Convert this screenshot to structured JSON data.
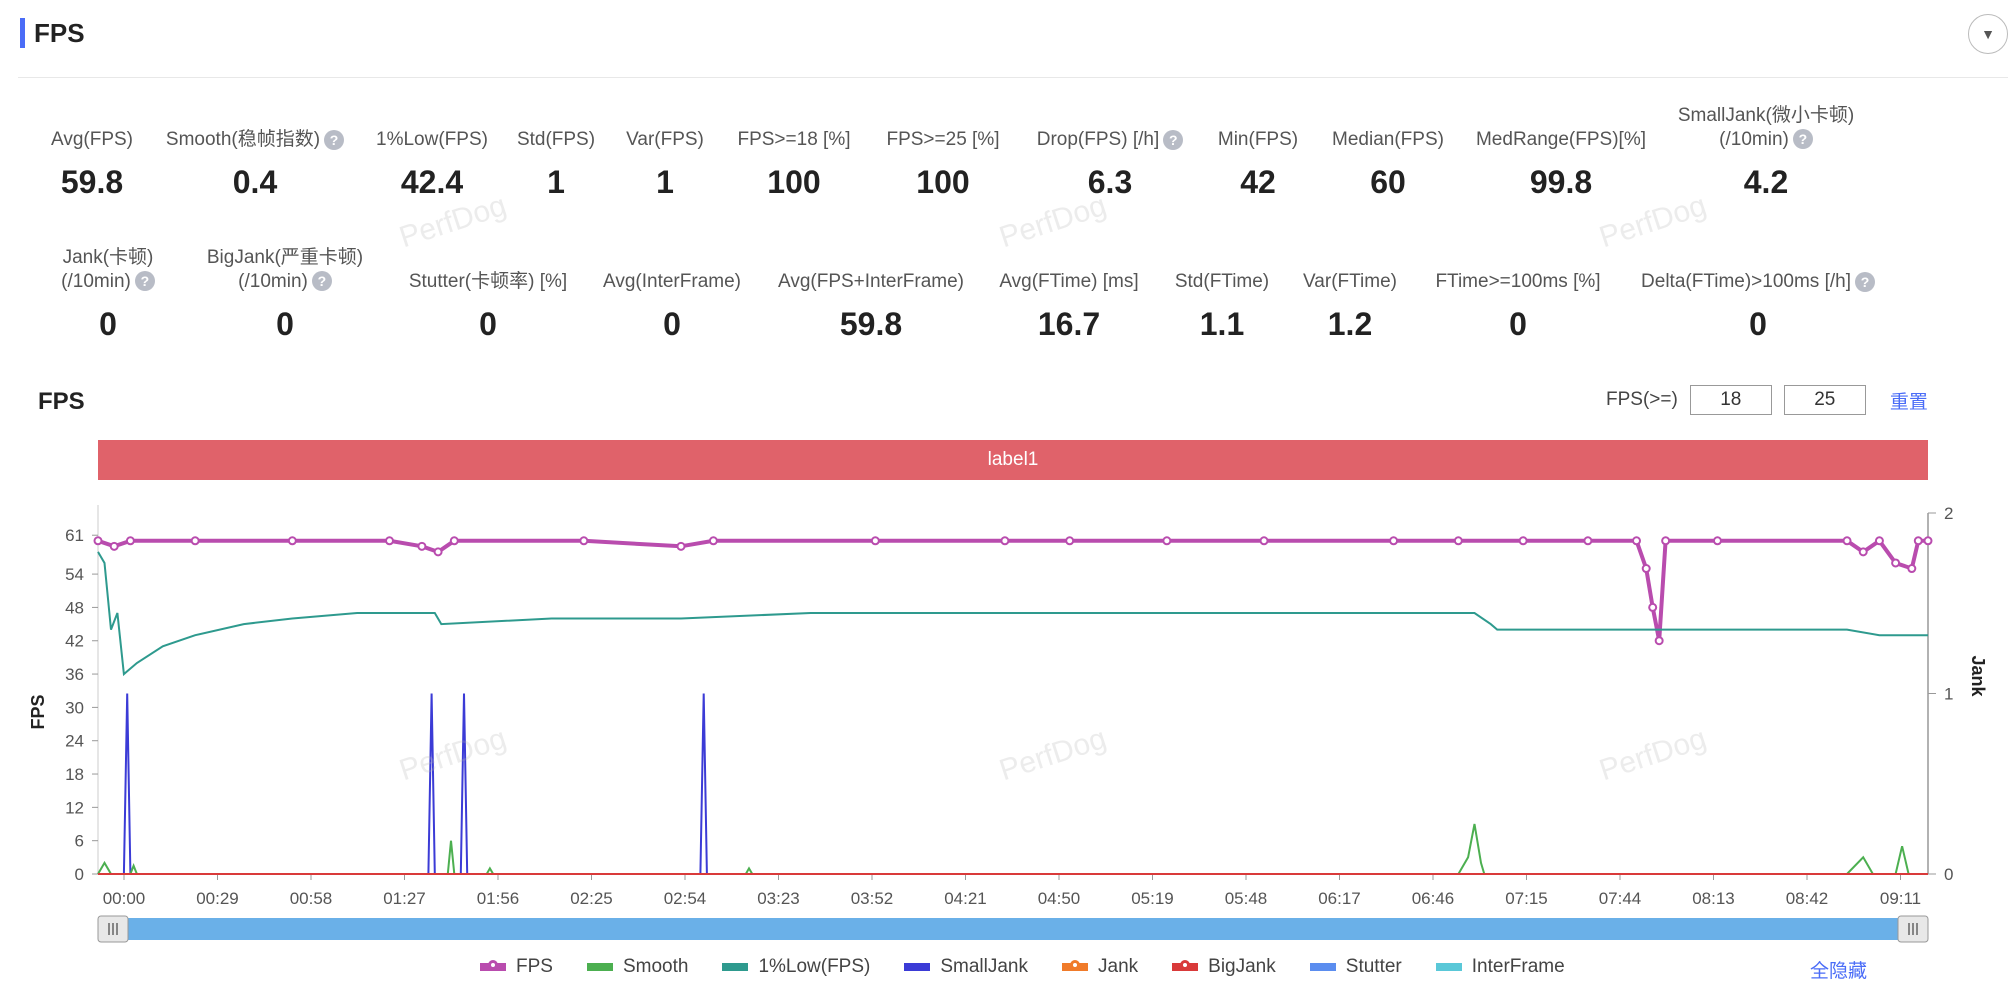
{
  "section": {
    "title": "FPS",
    "collapse_icon": "▼"
  },
  "metrics_row1": [
    {
      "label": "Avg(FPS)",
      "value": "59.8",
      "help": false
    },
    {
      "label": "Smooth(稳帧指数)",
      "value": "0.4",
      "help": true
    },
    {
      "label": "1%Low(FPS)",
      "value": "42.4",
      "help": false
    },
    {
      "label": "Std(FPS)",
      "value": "1",
      "help": false
    },
    {
      "label": "Var(FPS)",
      "value": "1",
      "help": false
    },
    {
      "label": "FPS>=18 [%]",
      "value": "100",
      "help": false
    },
    {
      "label": "FPS>=25 [%]",
      "value": "100",
      "help": false
    },
    {
      "label": "Drop(FPS) [/h]",
      "value": "6.3",
      "help": true
    },
    {
      "label": "Min(FPS)",
      "value": "42",
      "help": false
    },
    {
      "label": "Median(FPS)",
      "value": "60",
      "help": false
    },
    {
      "label": "MedRange(FPS)[%]",
      "value": "99.8",
      "help": false
    },
    {
      "label": "SmallJank(微小卡顿)",
      "label2": "(/10min)",
      "value": "4.2",
      "help": true
    }
  ],
  "metrics_row2": [
    {
      "label": "Jank(卡顿)",
      "label2": "(/10min)",
      "value": "0",
      "help": true
    },
    {
      "label": "BigJank(严重卡顿)",
      "label2": "(/10min)",
      "value": "0",
      "help": true
    },
    {
      "label": "Stutter(卡顿率) [%]",
      "value": "0",
      "help": false
    },
    {
      "label": "Avg(InterFrame)",
      "value": "0",
      "help": false
    },
    {
      "label": "Avg(FPS+InterFrame)",
      "value": "59.8",
      "help": false
    },
    {
      "label": "Avg(FTime) [ms]",
      "value": "16.7",
      "help": false
    },
    {
      "label": "Std(FTime)",
      "value": "1.1",
      "help": false
    },
    {
      "label": "Var(FTime)",
      "value": "1.2",
      "help": false
    },
    {
      "label": "FTime>=100ms [%]",
      "value": "0",
      "help": false
    },
    {
      "label": "Delta(FTime)>100ms [/h]",
      "value": "0",
      "help": true
    }
  ],
  "help_icon": "?",
  "chart_header": {
    "title": "FPS",
    "fps_filter_label": "FPS(>=)",
    "fps_threshold_1": "18",
    "fps_threshold_2": "25",
    "reset_label": "重置"
  },
  "label_bar": "label1",
  "watermark": "PerfDog",
  "legend": [
    {
      "name": "FPS",
      "color": "#b94cae",
      "marker": true
    },
    {
      "name": "Smooth",
      "color": "#4caf50",
      "marker": false
    },
    {
      "name": "1%Low(FPS)",
      "color": "#2e9a8e",
      "marker": false
    },
    {
      "name": "SmallJank",
      "color": "#3b3bd6",
      "marker": false
    },
    {
      "name": "Jank",
      "color": "#f07b2a",
      "marker": true
    },
    {
      "name": "BigJank",
      "color": "#d93a3a",
      "marker": true
    },
    {
      "name": "Stutter",
      "color": "#5b8def",
      "marker": false
    },
    {
      "name": "InterFrame",
      "color": "#5ac8d8",
      "marker": false
    }
  ],
  "hide_all_label": "全隐藏",
  "chart_data": {
    "type": "line",
    "ylabel": "FPS",
    "y2label": "Jank",
    "y_ticks": [
      0,
      6,
      12,
      18,
      24,
      30,
      36,
      42,
      48,
      54,
      61
    ],
    "y2_ticks": [
      0,
      1,
      2
    ],
    "x_tick_labels": [
      "00:00",
      "00:29",
      "00:58",
      "01:27",
      "01:56",
      "02:25",
      "02:54",
      "03:23",
      "03:52",
      "04:21",
      "04:50",
      "05:19",
      "05:48",
      "06:17",
      "06:46",
      "07:15",
      "07:44",
      "08:13",
      "08:42",
      "09:11"
    ],
    "x_range_seconds": [
      0,
      565
    ],
    "ylim": [
      0,
      65
    ],
    "y2lim": [
      0,
      2
    ],
    "series": [
      {
        "name": "FPS",
        "axis": "left",
        "points": [
          [
            0,
            60
          ],
          [
            5,
            59
          ],
          [
            10,
            60
          ],
          [
            30,
            60
          ],
          [
            60,
            60
          ],
          [
            90,
            60
          ],
          [
            100,
            59
          ],
          [
            105,
            58
          ],
          [
            110,
            60
          ],
          [
            150,
            60
          ],
          [
            180,
            59
          ],
          [
            190,
            60
          ],
          [
            240,
            60
          ],
          [
            280,
            60
          ],
          [
            300,
            60
          ],
          [
            330,
            60
          ],
          [
            360,
            60
          ],
          [
            400,
            60
          ],
          [
            420,
            60
          ],
          [
            440,
            60
          ],
          [
            460,
            60
          ],
          [
            475,
            60
          ],
          [
            478,
            55
          ],
          [
            480,
            48
          ],
          [
            482,
            42
          ],
          [
            484,
            60
          ],
          [
            500,
            60
          ],
          [
            540,
            60
          ],
          [
            545,
            58
          ],
          [
            550,
            60
          ],
          [
            555,
            56
          ],
          [
            560,
            55
          ],
          [
            562,
            60
          ],
          [
            565,
            60
          ]
        ]
      },
      {
        "name": "1%Low(FPS)",
        "axis": "left",
        "points": [
          [
            0,
            58
          ],
          [
            2,
            56
          ],
          [
            4,
            44
          ],
          [
            6,
            47
          ],
          [
            8,
            36
          ],
          [
            12,
            38
          ],
          [
            20,
            41
          ],
          [
            30,
            43
          ],
          [
            45,
            45
          ],
          [
            60,
            46
          ],
          [
            80,
            47
          ],
          [
            100,
            47
          ],
          [
            104,
            47
          ],
          [
            106,
            45
          ],
          [
            140,
            46
          ],
          [
            180,
            46
          ],
          [
            220,
            47
          ],
          [
            260,
            47
          ],
          [
            300,
            47
          ],
          [
            330,
            47
          ],
          [
            360,
            47
          ],
          [
            400,
            47
          ],
          [
            425,
            47
          ],
          [
            430,
            45
          ],
          [
            432,
            44
          ],
          [
            470,
            44
          ],
          [
            500,
            44
          ],
          [
            540,
            44
          ],
          [
            550,
            43
          ],
          [
            565,
            43
          ]
        ]
      },
      {
        "name": "SmallJank",
        "axis": "right",
        "points": [
          [
            0,
            0
          ],
          [
            8,
            0
          ],
          [
            9,
            1
          ],
          [
            10,
            0
          ],
          [
            102,
            0
          ],
          [
            103,
            1
          ],
          [
            104,
            0
          ],
          [
            112,
            0
          ],
          [
            113,
            1
          ],
          [
            114,
            0
          ],
          [
            186,
            0
          ],
          [
            187,
            1
          ],
          [
            188,
            0
          ],
          [
            565,
            0
          ]
        ]
      },
      {
        "name": "Smooth",
        "axis": "left",
        "points": [
          [
            0,
            0
          ],
          [
            2,
            2
          ],
          [
            4,
            0
          ],
          [
            10,
            0
          ],
          [
            11,
            1.5
          ],
          [
            12,
            0
          ],
          [
            108,
            0
          ],
          [
            109,
            6
          ],
          [
            110,
            0
          ],
          [
            120,
            0
          ],
          [
            121,
            1
          ],
          [
            122,
            0
          ],
          [
            200,
            0
          ],
          [
            201,
            1
          ],
          [
            202,
            0
          ],
          [
            420,
            0
          ],
          [
            423,
            3
          ],
          [
            425,
            9
          ],
          [
            427,
            2
          ],
          [
            428,
            0
          ],
          [
            540,
            0
          ],
          [
            545,
            3
          ],
          [
            548,
            0
          ],
          [
            555,
            0
          ],
          [
            557,
            5
          ],
          [
            559,
            0
          ],
          [
            565,
            0
          ]
        ]
      },
      {
        "name": "Jank",
        "axis": "right",
        "points": [
          [
            0,
            0
          ],
          [
            565,
            0
          ]
        ]
      },
      {
        "name": "BigJank",
        "axis": "right",
        "points": [
          [
            0,
            0
          ],
          [
            565,
            0
          ]
        ]
      }
    ]
  }
}
